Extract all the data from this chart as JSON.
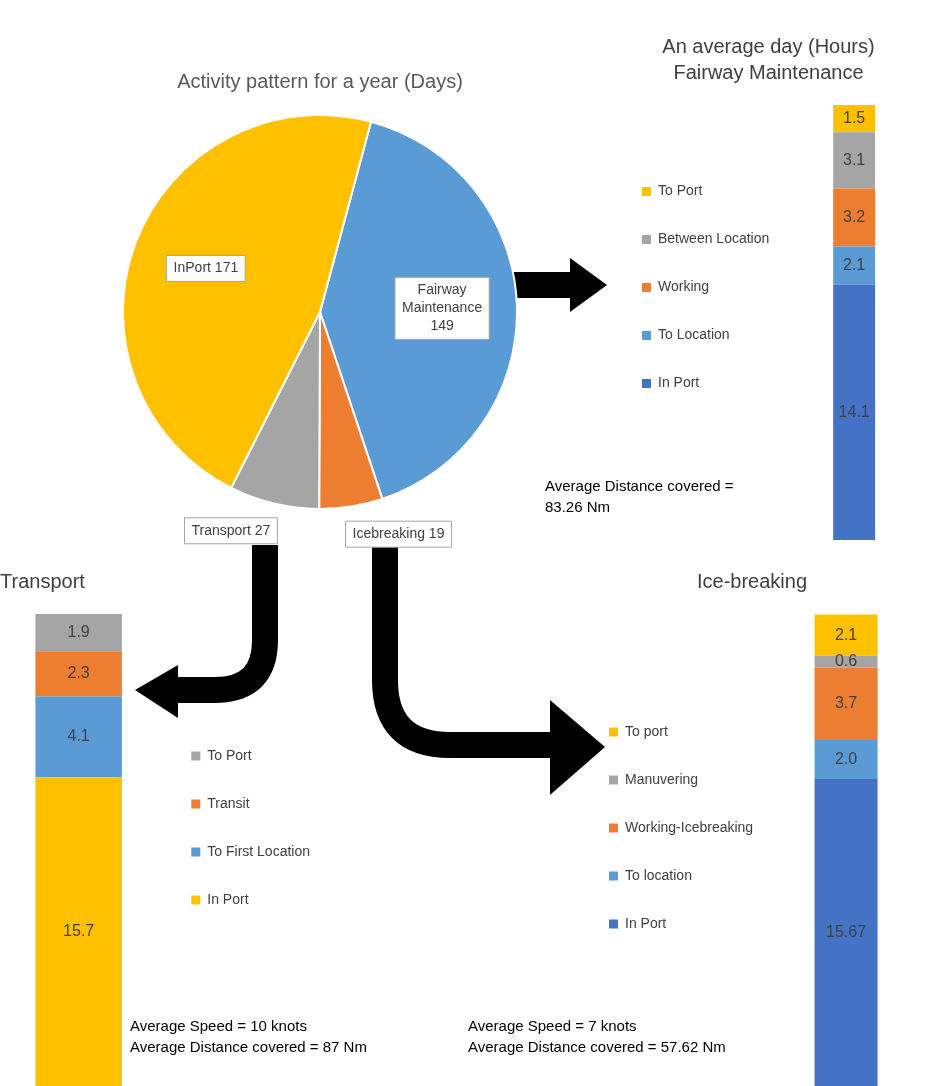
{
  "chart_data": [
    {
      "type": "pie",
      "title": "Activity pattern for a year (Days)",
      "categories": [
        "Fairway Maintenance",
        "Icebreaking",
        "Transport",
        "InPort"
      ],
      "values": [
        149,
        19,
        27,
        171
      ],
      "colors": [
        "#5b9bd5",
        "#ed7d31",
        "#a5a5a5",
        "#ffc000"
      ],
      "data_labels": true,
      "legend": false
    },
    {
      "type": "bar",
      "stacked": true,
      "title": "An average day (Hours)",
      "subtitle": "Fairway Maintenance",
      "categories": [
        null
      ],
      "series": [
        {
          "name": "In Port",
          "color": "#4472c4",
          "values": [
            14.1
          ]
        },
        {
          "name": "To Location",
          "color": "#5b9bd5",
          "values": [
            2.1
          ]
        },
        {
          "name": "Working",
          "color": "#ed7d31",
          "values": [
            3.2
          ]
        },
        {
          "name": "Between Location",
          "color": "#a5a5a5",
          "values": [
            3.1
          ]
        },
        {
          "name": "To Port",
          "color": "#ffc000",
          "values": [
            1.5
          ]
        }
      ],
      "ylim": [
        0,
        24
      ],
      "tick_labels": false,
      "data_labels": true,
      "legend": "left",
      "annotations": [
        "Average Distance covered = 83.26 Nm"
      ]
    },
    {
      "type": "bar",
      "stacked": true,
      "title": "Transport",
      "categories": [
        null
      ],
      "series": [
        {
          "name": "In Port",
          "color": "#ffc000",
          "values": [
            15.7
          ]
        },
        {
          "name": "To First Location",
          "color": "#5b9bd5",
          "values": [
            4.1
          ]
        },
        {
          "name": "Transit",
          "color": "#ed7d31",
          "values": [
            2.3
          ]
        },
        {
          "name": "To Port",
          "color": "#a5a5a5",
          "values": [
            1.9
          ]
        }
      ],
      "ylim": [
        0,
        24
      ],
      "tick_labels": false,
      "data_labels": true,
      "legend": "right",
      "annotations": [
        "Average Speed = 10 knots",
        "Average Distance covered = 87 Nm"
      ]
    },
    {
      "type": "bar",
      "stacked": true,
      "title": "Ice-breaking",
      "categories": [
        null
      ],
      "series": [
        {
          "name": "In Port",
          "color": "#4472c4",
          "values": [
            15.67
          ],
          "value_labels": [
            "15.67"
          ]
        },
        {
          "name": "To location",
          "color": "#5b9bd5",
          "values": [
            2.0
          ],
          "value_labels": [
            "2.0"
          ]
        },
        {
          "name": "Working-Icebreaking",
          "color": "#ed7d31",
          "values": [
            3.7
          ],
          "value_labels": [
            "3.7"
          ]
        },
        {
          "name": "Manuvering",
          "color": "#a5a5a5",
          "values": [
            0.6
          ],
          "value_labels": [
            "0.6"
          ]
        },
        {
          "name": "To port",
          "color": "#ffc000",
          "values": [
            2.1
          ],
          "value_labels": [
            "2.1"
          ]
        }
      ],
      "ylim": [
        0,
        24.1
      ],
      "tick_labels": false,
      "legend": "left",
      "annotations": [
        "Average Speed = 7 knots",
        "Average Distance covered = 57.62 Nm"
      ]
    }
  ]
}
